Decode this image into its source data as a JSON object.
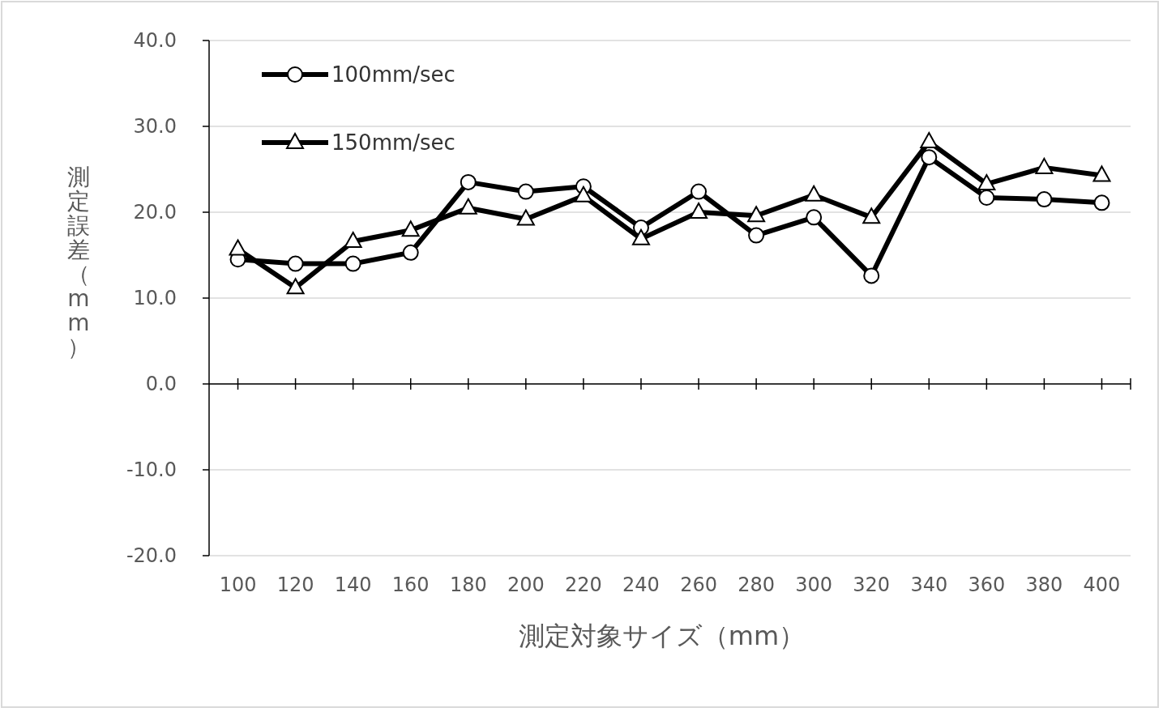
{
  "chart_data": {
    "type": "line",
    "xlabel": "測定対象サイズ（mm）",
    "ylabel": "測定誤差（mm）",
    "categories": [
      "100",
      "120",
      "140",
      "160",
      "180",
      "200",
      "220",
      "240",
      "260",
      "280",
      "300",
      "320",
      "340",
      "360",
      "380",
      "400"
    ],
    "series": [
      {
        "name": "100mm/sec",
        "color": "#000000",
        "marker": "circle",
        "values": [
          14.5,
          14.0,
          14.0,
          15.3,
          23.5,
          22.4,
          23.0,
          18.2,
          22.4,
          17.3,
          19.4,
          12.6,
          26.4,
          21.7,
          21.5,
          21.1
        ]
      },
      {
        "name": "150mm/sec",
        "color": "#000000",
        "marker": "triangle",
        "values": [
          15.7,
          11.2,
          16.6,
          17.9,
          20.5,
          19.2,
          21.9,
          16.9,
          20.0,
          19.6,
          22.0,
          19.4,
          28.2,
          23.3,
          25.2,
          24.3
        ]
      }
    ],
    "ylim": [
      -20,
      40
    ],
    "yticks": [
      {
        "value": -20,
        "label": "-20.0"
      },
      {
        "value": -10,
        "label": "-10.0"
      },
      {
        "value": 0,
        "label": "0.0"
      },
      {
        "value": 10,
        "label": "10.0"
      },
      {
        "value": 20,
        "label": "20.0"
      },
      {
        "value": 30,
        "label": "30.0"
      },
      {
        "value": 40,
        "label": "40.0"
      }
    ],
    "grid": "y",
    "legend": "top left",
    "line_style": "solid"
  }
}
